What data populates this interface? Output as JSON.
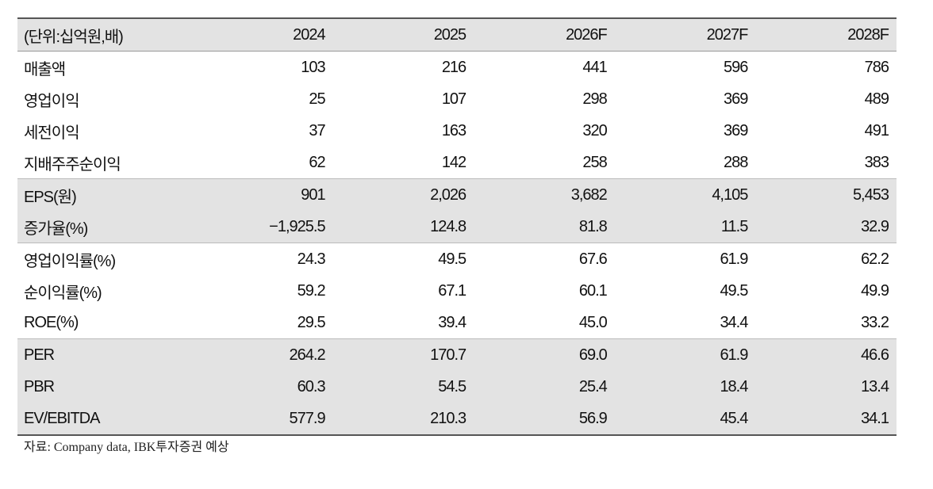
{
  "table": {
    "header": [
      "(단위:십억원,배)",
      "2024",
      "2025",
      "2026F",
      "2027F",
      "2028F"
    ],
    "groups": [
      {
        "rows": [
          [
            "매출액",
            "103",
            "216",
            "441",
            "596",
            "786"
          ],
          [
            "영업이익",
            "25",
            "107",
            "298",
            "369",
            "489"
          ],
          [
            "세전이익",
            "37",
            "163",
            "320",
            "369",
            "491"
          ],
          [
            "지배주주순이익",
            "62",
            "142",
            "258",
            "288",
            "383"
          ]
        ]
      },
      {
        "rows": [
          [
            "EPS(원)",
            "901",
            "2,026",
            "3,682",
            "4,105",
            "5,453"
          ],
          [
            "증가율(%)",
            "−1,925.5",
            "124.8",
            "81.8",
            "11.5",
            "32.9"
          ]
        ]
      },
      {
        "rows": [
          [
            "영업이익률(%)",
            "24.3",
            "49.5",
            "67.6",
            "61.9",
            "62.2"
          ],
          [
            "순이익률(%)",
            "59.2",
            "67.1",
            "60.1",
            "49.5",
            "49.9"
          ],
          [
            "ROE(%)",
            "29.5",
            "39.4",
            "45.0",
            "34.4",
            "33.2"
          ]
        ]
      },
      {
        "rows": [
          [
            "PER",
            "264.2",
            "170.7",
            "69.0",
            "61.9",
            "46.6"
          ],
          [
            "PBR",
            "60.3",
            "54.5",
            "25.4",
            "18.4",
            "13.4"
          ],
          [
            "EV/EBITDA",
            "577.9",
            "210.3",
            "56.9",
            "45.4",
            "34.1"
          ]
        ]
      }
    ]
  },
  "source": "자료: Company data, IBK투자증권 예상"
}
